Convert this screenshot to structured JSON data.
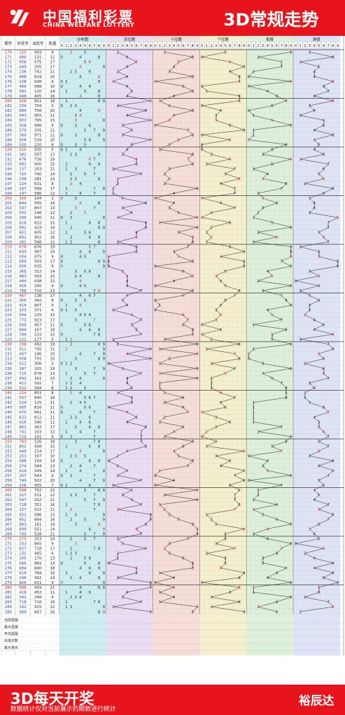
{
  "header": {
    "brand_cn": "中国福利彩票",
    "brand_en": "CHINA WELFARE LOTTERY",
    "title": "3D常规走势"
  },
  "footer": {
    "title": "3D每天开奖",
    "note": "数据统计仅对当前展示的期数进行统计",
    "brand": "裕辰达"
  },
  "colors": {
    "brand_red": "#e8141b",
    "dist_bg": "#cdeef0",
    "bai_bg": "#e9dcf3",
    "shi_bg": "#f6ddd7",
    "ge_bg": "#f6efcd",
    "hw_bg": "#dcf0da",
    "kd_bg": "#dfe3f6"
  },
  "chart_data": {
    "type": "table",
    "columns": [
      "期号",
      "开奖号",
      "试机号",
      "和值",
      "分布图",
      "百位数",
      "十位数",
      "个位数",
      "和尾",
      "跨度"
    ],
    "digit_header": [
      "0",
      "1",
      "2",
      "3",
      "4",
      "5",
      "6",
      "7",
      "8",
      "9"
    ],
    "draw_digits": [
      [
        2,
        2,
        5
      ],
      [
        4,
        8,
        0
      ],
      [
        6,
        5,
        6
      ],
      [
        4,
        4,
        9
      ],
      [
        2,
        3,
        6
      ],
      [
        4,
        8,
        8
      ],
      [
        1,
        0,
        8
      ],
      [
        4,
        6,
        0
      ],
      [
        5,
        8,
        1
      ],
      [
        4,
        4,
        8
      ],
      [
        9,
        1,
        8
      ],
      [
        2,
        3,
        0
      ],
      [
        8,
        8,
        4
      ],
      [
        4,
        4,
        3
      ],
      [
        9,
        3,
        3
      ],
      [
        3,
        0,
        6
      ],
      [
        5,
        7,
        9
      ],
      [
        3,
        8,
        0
      ],
      [
        9,
        5,
        6
      ],
      [
        5,
        3,
        0
      ],
      [
        4,
        1,
        0
      ],
      [
        3,
        8,
        2
      ],
      [
        6,
        7,
        6
      ],
      [
        6,
        8,
        1
      ],
      [
        1,
        3,
        7
      ],
      [
        7,
        2,
        5
      ],
      [
        2,
        3,
        8
      ],
      [
        2,
        2,
        4
      ],
      [
        1,
        9,
        7
      ],
      [
        1,
        4,
        7
      ],
      [
        3,
        0,
        0
      ],
      [
        8,
        4,
        4
      ],
      [
        3,
        3,
        7
      ],
      [
        5,
        5,
        2
      ],
      [
        2,
        9,
        0
      ],
      [
        8,
        1,
        6
      ],
      [
        8,
        9,
        2
      ],
      [
        6,
        5,
        1
      ],
      [
        6,
        8,
        2
      ],
      [
        2,
        8,
        1
      ],
      [
        6,
        7,
        6
      ],
      [
        6,
        4,
        9
      ],
      [
        0,
        5,
        4
      ],
      [
        0,
        8,
        9
      ],
      [
        0,
        0,
        9
      ],
      [
        3,
        6,
        5
      ],
      [
        4,
        8,
        3
      ],
      [
        4,
        4,
        4
      ],
      [
        4,
        0,
        5
      ],
      [
        7,
        8,
        8
      ],
      [
        4,
        6,
        7
      ],
      [
        3,
        0,
        5
      ],
      [
        4,
        1,
        4
      ],
      [
        1,
        0,
        3
      ],
      [
        5,
        6,
        4
      ],
      [
        7,
        7,
        3
      ],
      [
        5,
        6,
        0
      ],
      [
        6,
        8,
        4
      ],
      [
        7,
        8,
        0
      ],
      [
        1,
        2,
        2
      ],
      [
        2,
        9,
        8
      ],
      [
        9,
        1,
        1
      ],
      [
        4,
        9,
        7
      ],
      [
        9,
        3,
        8
      ],
      [
        0,
        1,
        2
      ],
      [
        3,
        9,
        7
      ],
      [
        7,
        1,
        5
      ],
      [
        4,
        9,
        2
      ],
      [
        4,
        1,
        2
      ],
      [
        5,
        1,
        2
      ],
      [
        2,
        2,
        4
      ],
      [
        5,
        6,
        7
      ],
      [
        5,
        2,
        4
      ],
      [
        0,
        6,
        5
      ],
      [
        4,
        7,
        0
      ],
      [
        6,
        2,
        3
      ],
      [
        4,
        1,
        6
      ],
      [
        8,
        6,
        3
      ],
      [
        7,
        4,
        1
      ],
      [
        7,
        2,
        0
      ],
      [
        7,
        8,
        3
      ],
      [
        8,
        6,
        1
      ],
      [
        4,
        4,
        9
      ],
      [
        2,
        5,
        3
      ],
      [
        0,
        8,
        6
      ],
      [
        2,
        7,
        4
      ],
      [
        4,
        1,
        9
      ],
      [
        2,
        0,
        7
      ],
      [
        7,
        4,
        9
      ],
      [
        1,
        0,
        6
      ],
      [
        5,
        9,
        8
      ],
      [
        3,
        2,
        7
      ],
      [
        5,
        9,
        7
      ],
      [
        7,
        1,
        8
      ],
      [
        2,
        2,
        7
      ],
      [
        9,
        3,
        1
      ],
      [
        9,
        5,
        2
      ],
      [
        8,
        8,
        3
      ],
      [
        6,
        9,
        9
      ],
      [
        7,
        9,
        5
      ],
      [
        2,
        7,
        5
      ],
      [
        3,
        3,
        3
      ],
      [
        8,
        2,
        7
      ],
      [
        2,
        3,
        1
      ],
      [
        2,
        6,
        5
      ],
      [
        0,
        8,
        5
      ],
      [
        6,
        8,
        4
      ],
      [
        6,
        1,
        9
      ],
      [
        2,
        4,
        8
      ],
      [
        9,
        0,
        0
      ],
      [
        9,
        4,
        8
      ],
      [
        4,
        1,
        6
      ],
      [
        3,
        4,
        2
      ],
      [
        7,
        1,
        8
      ],
      [
        1,
        9,
        2
      ],
      [
        9,
        8,
        9
      ]
    ],
    "test_digits": [
      [
        9,
        9,
        3
      ],
      [
        1,
        3,
        1
      ],
      [
        5,
        7,
        5
      ],
      [
        2,
        0,
        5
      ],
      [
        7,
        4,
        2
      ],
      [
        8,
        1,
        9
      ],
      [
        9,
        3,
        8
      ],
      [
        0,
        8,
        8
      ],
      [
        1,
        2,
        0
      ],
      [
        4,
        0,
        5
      ],
      [
        8,
        2,
        1
      ],
      [
        7,
        0,
        4
      ],
      [
        7,
        5,
        6
      ],
      [
        9,
        5,
        5
      ],
      [
        7,
        9,
        5
      ],
      [
        9,
        9,
        6
      ],
      [
        2,
        0,
        5
      ],
      [
        9,
        7,
        1
      ],
      [
        5,
        3,
        9
      ],
      [
        2,
        2,
        0
      ],
      [
        5,
        0,
        5
      ],
      [
        5,
        9,
        7
      ],
      [
        7,
        2,
        6
      ],
      [
        0,
        0,
        0
      ],
      [
        2,
        0,
        3
      ],
      [
        7,
        4,
        0
      ],
      [
        2,
        8,
        1
      ],
      [
        6,
        3,
        1
      ],
      [
        5,
        8,
        9
      ],
      [
        5,
        8,
        6
      ],
      [
        1,
        0,
        4
      ],
      [
        5,
        6,
        5
      ],
      [
        8,
        4,
        7
      ],
      [
        1,
        4,
        6
      ],
      [
        0,
        4,
        0
      ],
      [
        6,
        3,
        2
      ],
      [
        4,
        1,
        9
      ],
      [
        6,
        0,
        5
      ],
      [
        9,
        0,
        2
      ],
      [
        5,
        6,
        8
      ],
      [
        6,
        7,
        6
      ],
      [
        9,
        9,
        7
      ],
      [
        0,
        7,
        5
      ],
      [
        5,
        9,
        3
      ],
      [
        0,
        3,
        5
      ],
      [
        3,
        1,
        2
      ],
      [
        5,
        9,
        3
      ],
      [
        0,
        3,
        8
      ],
      [
        2,
        9,
        5
      ],
      [
        7,
        1,
        0
      ],
      [
        1,
        3,
        8
      ],
      [
        3,
        4,
        2
      ],
      [
        8,
        0,
        7
      ],
      [
        3,
        7,
        1
      ],
      [
        2,
        2,
        5
      ],
      [
        9,
        2,
        3
      ],
      [
        4,
        5,
        7
      ],
      [
        1,
        6,
        7
      ],
      [
        2,
        3,
        3
      ],
      [
        1,
        7,
        7
      ],
      [
        4,
        9,
        2
      ],
      [
        7,
        4,
        5
      ],
      [
        1,
        8,
        6
      ],
      [
        7,
        5,
        5
      ],
      [
        3,
        0,
        6
      ],
      [
        3,
        2,
        5
      ],
      [
        6,
        7,
        8
      ],
      [
        1,
        6,
        1
      ],
      [
        5,
        9,
        2
      ],
      [
        5,
        8,
        4
      ],
      [
        8,
        5,
        1
      ],
      [
        6,
        9,
        0
      ],
      [
        1,
        2,
        5
      ],
      [
        8,
        1,
        6
      ],
      [
        6,
        6,
        1
      ],
      [
        6,
        1,
        2
      ],
      [
        5,
        8,
        0
      ],
      [
        4,
        9,
        3
      ],
      [
        2,
        0,
        3
      ],
      [
        1,
        9,
        1
      ],
      [
        1,
        2,
        6
      ],
      [
        5,
        6,
        8
      ],
      [
        2,
        2,
        4
      ],
      [
        1,
        6,
        7
      ],
      [
        1,
        6,
        4
      ],
      [
        5,
        8,
        4
      ],
      [
        3,
        4,
        9
      ],
      [
        5,
        4,
        3
      ],
      [
        5,
        0,
        2
      ],
      [
        4,
        5,
        5
      ],
      [
        7,
        0,
        2
      ],
      [
        5,
        1,
        1
      ],
      [
        2,
        0,
        2
      ],
      [
        3,
        5,
        1
      ],
      [
        5,
        2,
        2
      ],
      [
        5,
        8,
        6
      ],
      [
        6,
        8,
        4
      ],
      [
        1,
        6,
        1
      ],
      [
        5,
        5,
        1
      ],
      [
        5,
        2,
        8
      ],
      [
        2,
        5,
        3
      ],
      [
        8,
        6,
        5
      ],
      [
        7,
        1,
        8
      ],
      [
        4,
        6,
        5
      ],
      [
        1,
        7,
        0
      ],
      [
        8,
        8,
        1
      ],
      [
        6,
        9,
        0
      ],
      [
        7,
        8,
        4
      ],
      [
        4,
        9,
        2
      ],
      [
        6,
        3,
        1
      ],
      [
        4,
        2,
        9
      ],
      [
        4,
        5,
        2
      ],
      [
        2,
        4,
        8
      ],
      [
        7,
        1,
        0
      ],
      [
        9,
        1,
        5
      ],
      [
        6,
        6,
        7
      ]
    ],
    "stats_rows": [
      "当前遗漏",
      "最大遗漏",
      "平均遗漏",
      "出现次数",
      "最大连出"
    ]
  }
}
